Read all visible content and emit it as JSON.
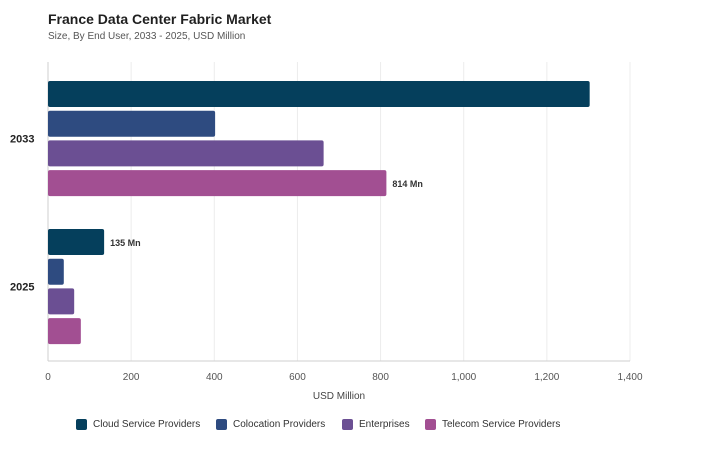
{
  "title": "France Data Center Fabric Market",
  "subtitle": "Size, By End User, 2033 - 2025, USD Million",
  "colors": {
    "Cloud Service Providers": "#053f5c",
    "Colocation Providers": "#2e4b80",
    "Enterprises": "#6b4f93",
    "Telecom Service Providers": "#a24f92"
  },
  "chart_data": {
    "type": "bar",
    "orientation": "horizontal",
    "title": "France Data Center Fabric Market",
    "subtitle": "Size, By End User, 2033 - 2025, USD Million",
    "categories": [
      "2033",
      "2025"
    ],
    "series": [
      {
        "name": "Cloud Service Providers",
        "values": [
          1303,
          135
        ]
      },
      {
        "name": "Colocation Providers",
        "values": [
          402,
          38
        ]
      },
      {
        "name": "Enterprises",
        "values": [
          663,
          63
        ]
      },
      {
        "name": "Telecom Service Providers",
        "values": [
          814,
          79
        ]
      }
    ],
    "data_labels": [
      {
        "category": "2033",
        "series": "Telecom Service Providers",
        "text": "814 Mn"
      },
      {
        "category": "2025",
        "series": "Cloud Service Providers",
        "text": "135 Mn"
      }
    ],
    "xlabel": "USD Million",
    "ylabel": "",
    "xlim": [
      0,
      1400
    ],
    "xticks": [
      0,
      200,
      400,
      600,
      800,
      1000,
      1200,
      1400
    ],
    "xtick_labels": [
      "0",
      "200",
      "400",
      "600",
      "800",
      "1,000",
      "1,200",
      "1,400"
    ],
    "grid": true,
    "legend_position": "bottom"
  }
}
